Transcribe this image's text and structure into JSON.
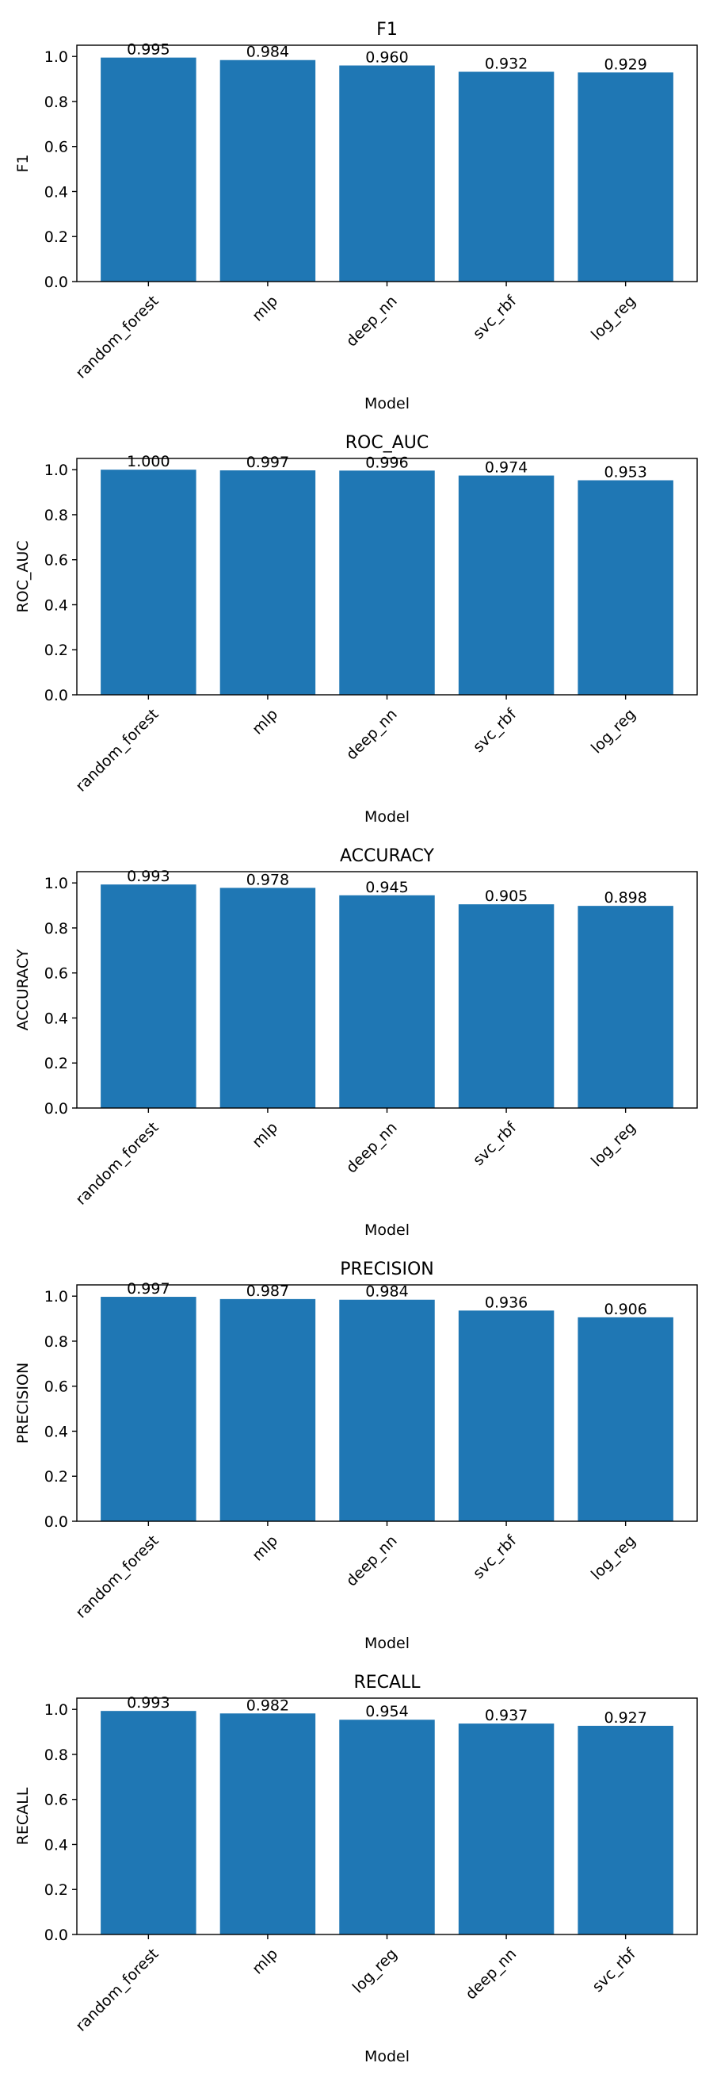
{
  "chart_data": [
    {
      "type": "bar",
      "title": "F1",
      "xlabel": "Model",
      "ylabel": "F1",
      "categories": [
        "random_forest",
        "mlp",
        "deep_nn",
        "svc_rbf",
        "log_reg"
      ],
      "values": [
        0.995,
        0.984,
        0.96,
        0.932,
        0.929
      ],
      "data_labels": [
        "0.995",
        "0.984",
        "0.960",
        "0.932",
        "0.929"
      ],
      "ylim": [
        0,
        1.05
      ],
      "yticks": [
        "0.0",
        "0.2",
        "0.4",
        "0.6",
        "0.8",
        "1.0"
      ],
      "grid": false,
      "bar_color": "#1f77b4"
    },
    {
      "type": "bar",
      "title": "ROC_AUC",
      "xlabel": "Model",
      "ylabel": "ROC_AUC",
      "categories": [
        "random_forest",
        "mlp",
        "deep_nn",
        "svc_rbf",
        "log_reg"
      ],
      "values": [
        1.0,
        0.997,
        0.996,
        0.974,
        0.953
      ],
      "data_labels": [
        "1.000",
        "0.997",
        "0.996",
        "0.974",
        "0.953"
      ],
      "ylim": [
        0,
        1.05
      ],
      "yticks": [
        "0.0",
        "0.2",
        "0.4",
        "0.6",
        "0.8",
        "1.0"
      ],
      "grid": false,
      "bar_color": "#1f77b4"
    },
    {
      "type": "bar",
      "title": "ACCURACY",
      "xlabel": "Model",
      "ylabel": "ACCURACY",
      "categories": [
        "random_forest",
        "mlp",
        "deep_nn",
        "svc_rbf",
        "log_reg"
      ],
      "values": [
        0.993,
        0.978,
        0.945,
        0.905,
        0.898
      ],
      "data_labels": [
        "0.993",
        "0.978",
        "0.945",
        "0.905",
        "0.898"
      ],
      "ylim": [
        0,
        1.05
      ],
      "yticks": [
        "0.0",
        "0.2",
        "0.4",
        "0.6",
        "0.8",
        "1.0"
      ],
      "grid": false,
      "bar_color": "#1f77b4"
    },
    {
      "type": "bar",
      "title": "PRECISION",
      "xlabel": "Model",
      "ylabel": "PRECISION",
      "categories": [
        "random_forest",
        "mlp",
        "deep_nn",
        "svc_rbf",
        "log_reg"
      ],
      "values": [
        0.997,
        0.987,
        0.984,
        0.936,
        0.906
      ],
      "data_labels": [
        "0.997",
        "0.987",
        "0.984",
        "0.936",
        "0.906"
      ],
      "ylim": [
        0,
        1.05
      ],
      "yticks": [
        "0.0",
        "0.2",
        "0.4",
        "0.6",
        "0.8",
        "1.0"
      ],
      "grid": false,
      "bar_color": "#1f77b4"
    },
    {
      "type": "bar",
      "title": "RECALL",
      "xlabel": "Model",
      "ylabel": "RECALL",
      "categories": [
        "random_forest",
        "mlp",
        "log_reg",
        "deep_nn",
        "svc_rbf"
      ],
      "values": [
        0.993,
        0.982,
        0.954,
        0.937,
        0.927
      ],
      "data_labels": [
        "0.993",
        "0.982",
        "0.954",
        "0.937",
        "0.927"
      ],
      "ylim": [
        0,
        1.05
      ],
      "yticks": [
        "0.0",
        "0.2",
        "0.4",
        "0.6",
        "0.8",
        "1.0"
      ],
      "grid": false,
      "bar_color": "#1f77b4"
    }
  ]
}
